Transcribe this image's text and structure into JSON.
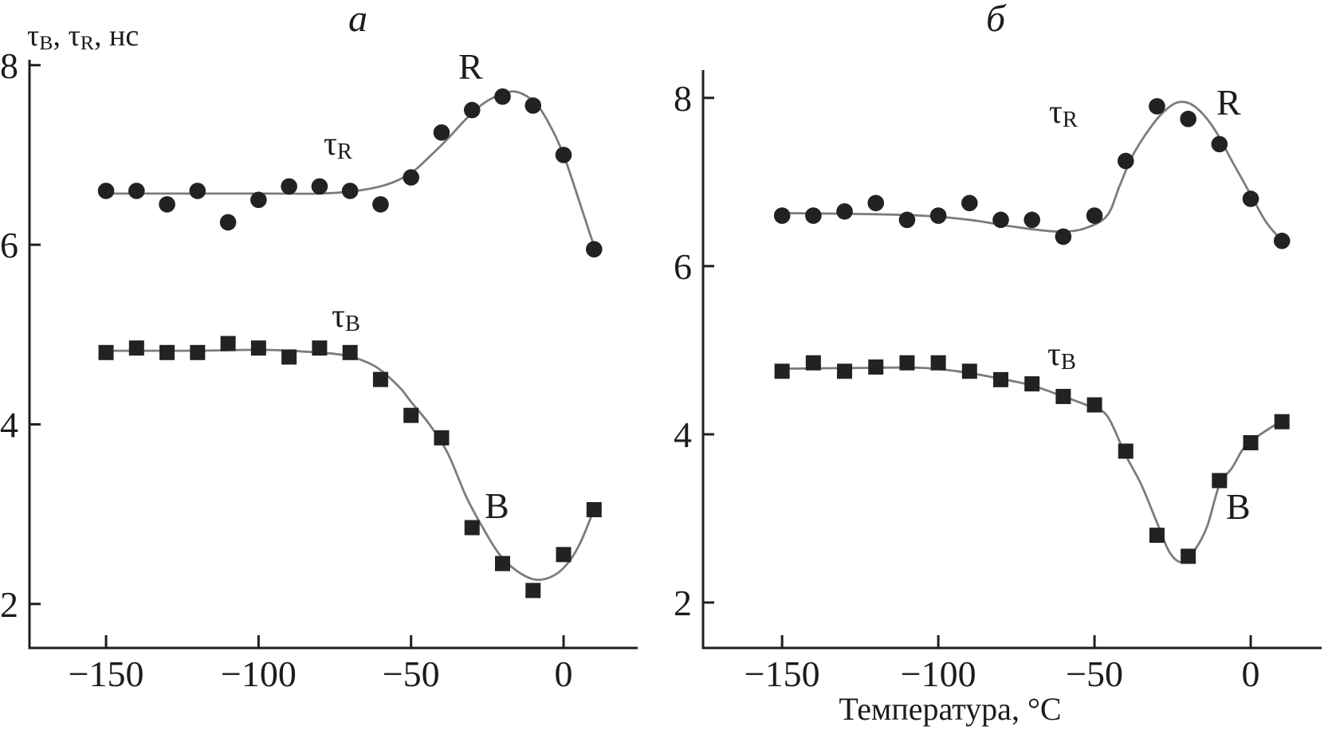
{
  "figure": {
    "y_axis_label": {
      "tau1": "τ",
      "sub1": "B",
      "sep1": ", ",
      "tau2": "τ",
      "sub2": "R",
      "units": ", нс"
    },
    "x_axis_label": "Температура, °C"
  },
  "chart_data": [
    {
      "type": "scatter",
      "panel_id": "a",
      "panel_label": "a",
      "xlim": [
        -175.1,
        24.3
      ],
      "ylim": [
        1.51,
        8.06
      ],
      "x_ticks": [
        -150,
        -100,
        -50,
        0
      ],
      "x_tick_labels": [
        "−150",
        "−100",
        "−50",
        "0"
      ],
      "y_ticks": [
        8,
        6,
        4,
        2
      ],
      "y_tick_labels": [
        "8",
        "6",
        "4",
        "2"
      ],
      "x": [
        -150,
        -140,
        -130,
        -120,
        -110,
        -100,
        -90,
        -80,
        -70,
        -60,
        -50,
        -40,
        -30,
        -20,
        -10,
        0,
        10
      ],
      "series": [
        {
          "name": "tau_R",
          "curve_label": "R",
          "tau_label": {
            "base": "τ",
            "sub": "R"
          },
          "marker": "circle",
          "values": [
            6.6,
            6.6,
            6.45,
            6.6,
            6.25,
            6.5,
            6.65,
            6.65,
            6.6,
            6.45,
            6.75,
            7.25,
            7.5,
            7.65,
            7.55,
            7.0,
            5.95
          ],
          "trend": [
            [
              -150,
              6.57
            ],
            [
              -120,
              6.57
            ],
            [
              -95,
              6.57
            ],
            [
              -80,
              6.57
            ],
            [
              -68,
              6.6
            ],
            [
              -58,
              6.67
            ],
            [
              -50,
              6.8
            ],
            [
              -44,
              6.98
            ],
            [
              -38,
              7.18
            ],
            [
              -32,
              7.4
            ],
            [
              -26,
              7.58
            ],
            [
              -20,
              7.68
            ],
            [
              -15,
              7.7
            ],
            [
              -9,
              7.57
            ],
            [
              -4,
              7.3
            ],
            [
              0,
              7.0
            ],
            [
              5,
              6.5
            ],
            [
              10.5,
              5.93
            ]
          ]
        },
        {
          "name": "tau_B",
          "curve_label": "B",
          "tau_label": {
            "base": "τ",
            "sub": "B"
          },
          "marker": "square",
          "values": [
            4.8,
            4.85,
            4.8,
            4.8,
            4.9,
            4.85,
            4.75,
            4.85,
            4.8,
            4.5,
            4.1,
            3.85,
            2.85,
            2.45,
            2.15,
            2.55,
            3.05
          ],
          "trend": [
            [
              -150,
              4.82
            ],
            [
              -120,
              4.82
            ],
            [
              -100,
              4.83
            ],
            [
              -85,
              4.81
            ],
            [
              -72,
              4.77
            ],
            [
              -62,
              4.65
            ],
            [
              -54,
              4.42
            ],
            [
              -50,
              4.25
            ],
            [
              -44,
              4.0
            ],
            [
              -38,
              3.68
            ],
            [
              -32,
              3.2
            ],
            [
              -27,
              2.88
            ],
            [
              -21,
              2.55
            ],
            [
              -15,
              2.36
            ],
            [
              -9,
              2.27
            ],
            [
              -3,
              2.32
            ],
            [
              2,
              2.48
            ],
            [
              6,
              2.72
            ],
            [
              10.5,
              3.1
            ]
          ]
        }
      ]
    },
    {
      "type": "scatter",
      "panel_id": "b",
      "panel_label": "б",
      "xlim": [
        -175.3,
        22.7
      ],
      "ylim": [
        1.46,
        8.33
      ],
      "x_ticks": [
        -150,
        -100,
        -50,
        0
      ],
      "x_tick_labels": [
        "−150",
        "−100",
        "−50",
        "0"
      ],
      "y_ticks": [
        8,
        6,
        4,
        2
      ],
      "y_tick_labels": [
        "8",
        "6",
        "4",
        "2"
      ],
      "x": [
        -150,
        -140,
        -130,
        -120,
        -110,
        -100,
        -90,
        -80,
        -70,
        -60,
        -50,
        -40,
        -30,
        -20,
        -10,
        0,
        10
      ],
      "series": [
        {
          "name": "tau_R",
          "curve_label": "R",
          "tau_label": {
            "base": "τ",
            "sub": "R"
          },
          "marker": "circle",
          "values": [
            6.6,
            6.6,
            6.65,
            6.75,
            6.55,
            6.6,
            6.75,
            6.55,
            6.55,
            6.35,
            6.6,
            7.25,
            7.9,
            7.75,
            7.45,
            6.8,
            6.3
          ],
          "trend": [
            [
              -150,
              6.63
            ],
            [
              -125,
              6.62
            ],
            [
              -105,
              6.6
            ],
            [
              -90,
              6.55
            ],
            [
              -78,
              6.48
            ],
            [
              -68,
              6.43
            ],
            [
              -60,
              6.41
            ],
            [
              -53,
              6.45
            ],
            [
              -46,
              6.6
            ],
            [
              -42,
              6.95
            ],
            [
              -38,
              7.3
            ],
            [
              -33,
              7.6
            ],
            [
              -28,
              7.83
            ],
            [
              -23,
              7.95
            ],
            [
              -18,
              7.9
            ],
            [
              -12,
              7.65
            ],
            [
              -6,
              7.25
            ],
            [
              0,
              6.85
            ],
            [
              5,
              6.52
            ],
            [
              10.5,
              6.28
            ]
          ]
        },
        {
          "name": "tau_B",
          "curve_label": "B",
          "tau_label": {
            "base": "τ",
            "sub": "B"
          },
          "marker": "square",
          "values": [
            4.75,
            4.85,
            4.75,
            4.8,
            4.85,
            4.85,
            4.75,
            4.65,
            4.6,
            4.45,
            4.35,
            3.8,
            2.8,
            2.55,
            3.45,
            3.9,
            4.15
          ],
          "trend": [
            [
              -150,
              4.78
            ],
            [
              -125,
              4.79
            ],
            [
              -105,
              4.79
            ],
            [
              -92,
              4.74
            ],
            [
              -80,
              4.66
            ],
            [
              -70,
              4.58
            ],
            [
              -60,
              4.45
            ],
            [
              -52,
              4.34
            ],
            [
              -46,
              4.22
            ],
            [
              -40,
              3.75
            ],
            [
              -35,
              3.4
            ],
            [
              -30,
              2.95
            ],
            [
              -26,
              2.6
            ],
            [
              -22,
              2.48
            ],
            [
              -18,
              2.62
            ],
            [
              -14,
              2.9
            ],
            [
              -10,
              3.4
            ],
            [
              -6,
              3.6
            ],
            [
              -2,
              3.85
            ],
            [
              2,
              3.97
            ],
            [
              6,
              4.07
            ],
            [
              10.5,
              4.17
            ]
          ]
        }
      ]
    }
  ]
}
